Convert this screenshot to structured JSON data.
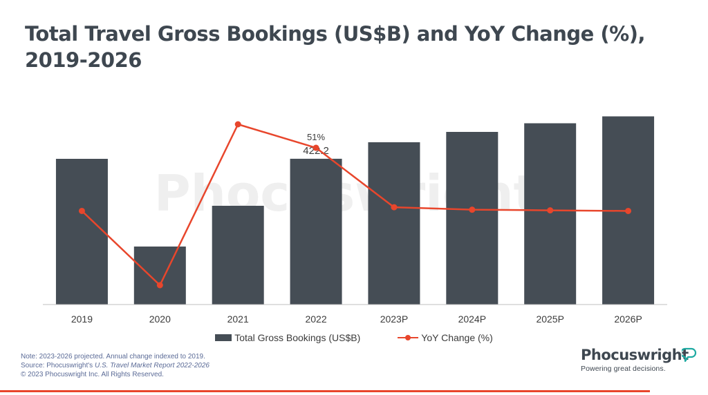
{
  "title": "Total Travel Gross Bookings (US$B) and YoY Change (%), 2019-2026",
  "chart_data": {
    "type": "bar",
    "categories": [
      "2019",
      "2020",
      "2021",
      "2022",
      "2023P",
      "2024P",
      "2025P",
      "2026P"
    ],
    "series": [
      {
        "name": "Total Gross Bookings (US$B)",
        "type": "bar",
        "color": "#454d55",
        "values": [
          422,
          168,
          286,
          422.2,
          470,
          500,
          525,
          545
        ],
        "data_labels": [
          null,
          null,
          null,
          "422.2",
          null,
          null,
          null,
          null
        ]
      },
      {
        "name": "YoY Change (%)",
        "type": "line",
        "color": "#e8462c",
        "values": [
          0,
          -60,
          70,
          51,
          3,
          1,
          0.5,
          0
        ],
        "data_labels": [
          null,
          null,
          null,
          "51%",
          null,
          null,
          null,
          null
        ]
      }
    ],
    "ylim": [
      0,
      600
    ],
    "ylim_secondary": [
      -60,
      70
    ],
    "grid": false,
    "legend_position": "bottom",
    "xlabel": "",
    "ylabel": ""
  },
  "watermark": "Phocuswright",
  "notes": {
    "line1": "Note: 2023-2026 projected. Annual change indexed to 2019.",
    "line2_prefix": "Source: Phocuswright's ",
    "line2_italic": "U.S. Travel Market Report 2022-2026",
    "line3": "© 2023 Phocuswright Inc. All Rights Reserved."
  },
  "brand": {
    "name": "Phocuswright",
    "tagline": "Powering great decisions."
  },
  "colors": {
    "bar": "#454d55",
    "line": "#e8462c",
    "title": "#3e4750",
    "notes": "#5a6a96"
  }
}
